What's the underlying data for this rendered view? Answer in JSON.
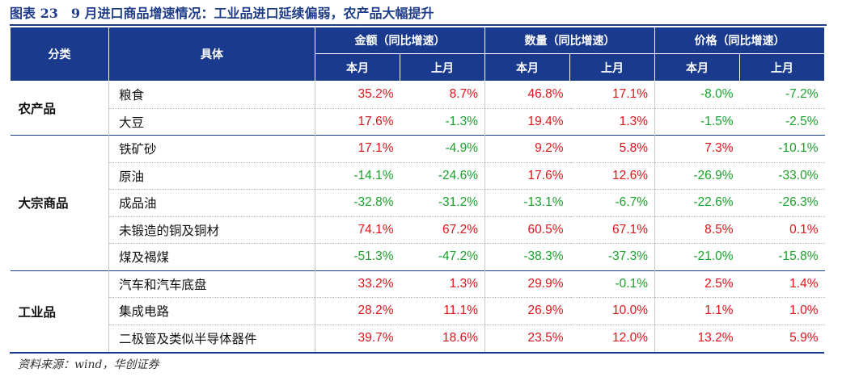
{
  "title": "图表 23　9 月进口商品增速情况：工业品进口延续偏弱，农产品大幅提升",
  "header": {
    "category": "分类",
    "item": "具体",
    "groups": [
      "金额（同比增速）",
      "数量（同比增速）",
      "价格（同比增速）"
    ],
    "sub": [
      "本月",
      "上月"
    ]
  },
  "sections": [
    {
      "name": "农产品",
      "rows": [
        {
          "item": "粮食",
          "values": [
            "35.2%",
            "8.7%",
            "46.8%",
            "17.1%",
            "-8.0%",
            "-7.2%"
          ]
        },
        {
          "item": "大豆",
          "values": [
            "17.6%",
            "-1.3%",
            "19.4%",
            "1.3%",
            "-1.5%",
            "-2.5%"
          ]
        }
      ]
    },
    {
      "name": "大宗商品",
      "rows": [
        {
          "item": "铁矿砂",
          "values": [
            "17.1%",
            "-4.9%",
            "9.2%",
            "5.8%",
            "7.3%",
            "-10.1%"
          ]
        },
        {
          "item": "原油",
          "values": [
            "-14.1%",
            "-24.6%",
            "17.6%",
            "12.6%",
            "-26.9%",
            "-33.0%"
          ]
        },
        {
          "item": "成品油",
          "values": [
            "-32.8%",
            "-31.2%",
            "-13.1%",
            "-6.7%",
            "-22.6%",
            "-26.3%"
          ]
        },
        {
          "item": "未锻造的铜及铜材",
          "values": [
            "74.1%",
            "67.2%",
            "60.5%",
            "67.1%",
            "8.5%",
            "0.1%"
          ]
        },
        {
          "item": "煤及褐煤",
          "values": [
            "-51.3%",
            "-47.2%",
            "-38.3%",
            "-37.3%",
            "-21.0%",
            "-15.8%"
          ]
        }
      ]
    },
    {
      "name": "工业品",
      "rows": [
        {
          "item": "汽车和汽车底盘",
          "values": [
            "33.2%",
            "1.3%",
            "29.9%",
            "-0.1%",
            "2.5%",
            "1.4%"
          ]
        },
        {
          "item": "集成电路",
          "values": [
            "28.2%",
            "11.1%",
            "26.9%",
            "10.0%",
            "1.1%",
            "1.0%"
          ]
        },
        {
          "item": "二极管及类似半导体器件",
          "values": [
            "39.7%",
            "18.6%",
            "23.5%",
            "12.0%",
            "13.2%",
            "5.9%"
          ]
        }
      ]
    }
  ],
  "source": "资料来源：wind，华创证券",
  "colors": {
    "header_bg": "#1a3a8e",
    "title": "#1f3c88",
    "positive": "#e0151b",
    "negative": "#1aa32a"
  }
}
